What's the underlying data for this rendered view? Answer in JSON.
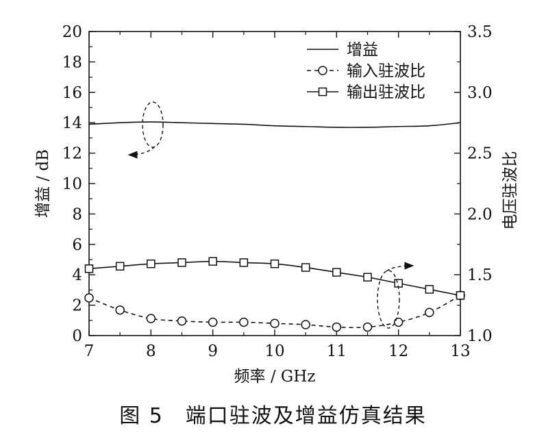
{
  "caption": "图 5　端口驻波及增益仿真结果",
  "chart_data": {
    "type": "line",
    "xlabel": "频率 / GHz",
    "ylabel_left": "增益 / dB",
    "ylabel_right": "电压驻波比",
    "xlim": [
      7,
      13
    ],
    "ylim_left": [
      0,
      20
    ],
    "ylim_right": [
      1.0,
      3.5
    ],
    "x_ticks": [
      7,
      8,
      9,
      10,
      11,
      12,
      13
    ],
    "y_ticks_left": [
      0,
      2,
      4,
      6,
      8,
      10,
      12,
      14,
      16,
      18,
      20
    ],
    "y_ticks_right": [
      "1.0",
      "1.5",
      "2.0",
      "2.5",
      "3.0",
      "3.5"
    ],
    "legend_position": "top-right",
    "series": [
      {
        "name": "增益",
        "axis": "left",
        "style": "solid",
        "marker": "none",
        "x": [
          7,
          7.5,
          8,
          8.5,
          9,
          9.5,
          10,
          10.5,
          11,
          11.5,
          12,
          12.5,
          13
        ],
        "values": [
          13.9,
          14.0,
          14.05,
          14.0,
          13.95,
          13.9,
          13.8,
          13.75,
          13.7,
          13.7,
          13.75,
          13.8,
          14.0
        ]
      },
      {
        "name": "输入驻波比",
        "axis": "right",
        "style": "dashed",
        "marker": "circle",
        "x": [
          7,
          7.5,
          8,
          8.5,
          9,
          9.5,
          10,
          10.5,
          11,
          11.5,
          12,
          12.5,
          13
        ],
        "values": [
          1.31,
          1.21,
          1.14,
          1.12,
          1.11,
          1.11,
          1.1,
          1.09,
          1.07,
          1.07,
          1.11,
          1.19,
          1.33
        ]
      },
      {
        "name": "输出驻波比",
        "axis": "right",
        "style": "solid",
        "marker": "square",
        "x": [
          7,
          7.5,
          8,
          8.5,
          9,
          9.5,
          10,
          10.5,
          11,
          11.5,
          12,
          12.5,
          13
        ],
        "values": [
          1.55,
          1.57,
          1.59,
          1.6,
          1.61,
          1.6,
          1.59,
          1.56,
          1.52,
          1.48,
          1.43,
          1.38,
          1.33
        ]
      }
    ]
  }
}
